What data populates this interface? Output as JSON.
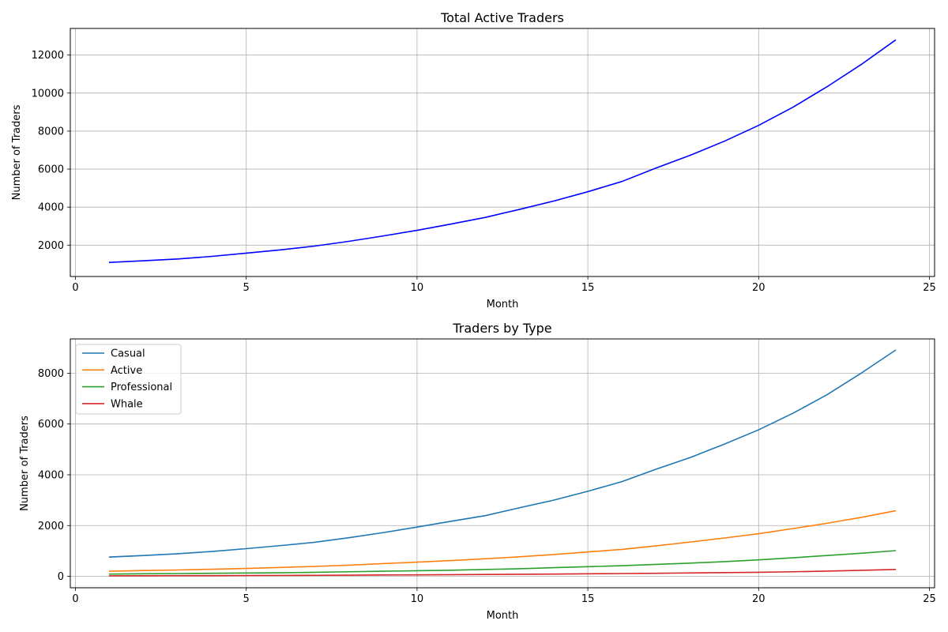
{
  "chart_data": [
    {
      "type": "line",
      "title": "Total Active Traders",
      "xlabel": "Month",
      "ylabel": "Number of Traders",
      "xlim": [
        -0.15,
        25.15
      ],
      "ylim": [
        350,
        13400
      ],
      "xticks": [
        0,
        5,
        10,
        15,
        20,
        25
      ],
      "yticks": [
        2000,
        4000,
        6000,
        8000,
        10000,
        12000
      ],
      "grid": true,
      "legend": null,
      "x": [
        1,
        2,
        3,
        4,
        5,
        6,
        7,
        8,
        9,
        10,
        11,
        12,
        13,
        14,
        15,
        16,
        17,
        18,
        19,
        20,
        21,
        22,
        23,
        24
      ],
      "series": [
        {
          "color": "#0000ff",
          "values": [
            1090,
            1180,
            1270,
            1410,
            1580,
            1750,
            1950,
            2200,
            2480,
            2780,
            3110,
            3460,
            3880,
            4320,
            4810,
            5350,
            6060,
            6730,
            7470,
            8300,
            9250,
            10330,
            11500,
            12780
          ]
        }
      ]
    },
    {
      "type": "line",
      "title": "Traders by Type",
      "xlabel": "Month",
      "ylabel": "Number of Traders",
      "xlim": [
        -0.15,
        25.15
      ],
      "ylim": [
        -450,
        9350
      ],
      "xticks": [
        0,
        5,
        10,
        15,
        20,
        25
      ],
      "yticks": [
        0,
        2000,
        4000,
        6000,
        8000
      ],
      "grid": true,
      "legend": "top-left",
      "x": [
        1,
        2,
        3,
        4,
        5,
        6,
        7,
        8,
        9,
        10,
        11,
        12,
        13,
        14,
        15,
        16,
        17,
        18,
        19,
        20,
        21,
        22,
        23,
        24
      ],
      "series": [
        {
          "name": "Casual",
          "color": "#1f77b4",
          "values": [
            760,
            820,
            890,
            980,
            1090,
            1210,
            1340,
            1520,
            1720,
            1940,
            2170,
            2390,
            2700,
            3000,
            3350,
            3730,
            4220,
            4680,
            5210,
            5770,
            6420,
            7150,
            8000,
            8900
          ]
        },
        {
          "name": "Active",
          "color": "#ff7f0e",
          "values": [
            200,
            230,
            250,
            280,
            310,
            350,
            390,
            440,
            500,
            560,
            620,
            690,
            770,
            860,
            960,
            1060,
            1200,
            1350,
            1510,
            1680,
            1880,
            2090,
            2320,
            2580
          ]
        },
        {
          "name": "Professional",
          "color": "#2ca02c",
          "values": [
            90,
            100,
            110,
            120,
            130,
            140,
            160,
            180,
            200,
            220,
            240,
            270,
            300,
            340,
            380,
            420,
            470,
            520,
            580,
            650,
            730,
            820,
            910,
            1010
          ]
        },
        {
          "name": "Whale",
          "color": "#d62728",
          "values": [
            20,
            22,
            25,
            28,
            32,
            36,
            40,
            45,
            52,
            58,
            65,
            72,
            80,
            90,
            100,
            110,
            120,
            133,
            147,
            160,
            180,
            205,
            235,
            270
          ]
        }
      ]
    }
  ]
}
